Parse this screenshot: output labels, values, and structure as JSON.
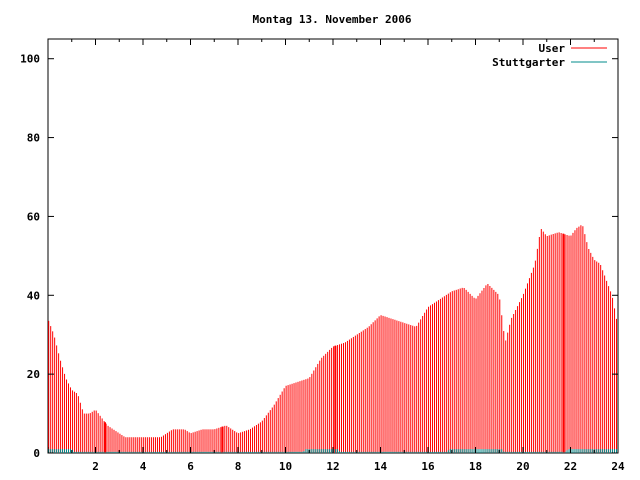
{
  "chart_data": {
    "type": "bar",
    "title": "Montag 13. November 2006",
    "xlabel": "",
    "ylabel": "",
    "xlim": [
      0,
      24
    ],
    "ylim": [
      0,
      105
    ],
    "xticks": [
      2,
      4,
      6,
      8,
      10,
      12,
      14,
      16,
      18,
      20,
      22,
      24
    ],
    "yticks": [
      0,
      20,
      40,
      60,
      80,
      100
    ],
    "grid": false,
    "legend_position": "top-right",
    "bar_spacing_hours": 0.0833,
    "series": [
      {
        "name": "User",
        "color": "#ff0000",
        "profile": [
          [
            0,
            34
          ],
          [
            0.25,
            30
          ],
          [
            0.5,
            24
          ],
          [
            0.75,
            19
          ],
          [
            1.0,
            16
          ],
          [
            1.25,
            15
          ],
          [
            1.5,
            10
          ],
          [
            1.75,
            10
          ],
          [
            2.0,
            11
          ],
          [
            2.25,
            9
          ],
          [
            2.5,
            7
          ],
          [
            2.75,
            6
          ],
          [
            3.0,
            5
          ],
          [
            3.25,
            4
          ],
          [
            4.0,
            4
          ],
          [
            4.75,
            4
          ],
          [
            5.0,
            5
          ],
          [
            5.25,
            6
          ],
          [
            5.75,
            6
          ],
          [
            6.0,
            5
          ],
          [
            6.5,
            6
          ],
          [
            7.0,
            6
          ],
          [
            7.5,
            7
          ],
          [
            7.75,
            6
          ],
          [
            8.0,
            5
          ],
          [
            8.5,
            6
          ],
          [
            9.0,
            8
          ],
          [
            9.5,
            12
          ],
          [
            10.0,
            17
          ],
          [
            10.5,
            18
          ],
          [
            11.0,
            19
          ],
          [
            11.5,
            24
          ],
          [
            12.0,
            27
          ],
          [
            12.5,
            28
          ],
          [
            13.0,
            30
          ],
          [
            13.5,
            32
          ],
          [
            14.0,
            35
          ],
          [
            14.5,
            34
          ],
          [
            15.0,
            33
          ],
          [
            15.5,
            32
          ],
          [
            16.0,
            37
          ],
          [
            16.5,
            39
          ],
          [
            17.0,
            41
          ],
          [
            17.5,
            42
          ],
          [
            18.0,
            39
          ],
          [
            18.5,
            43
          ],
          [
            19.0,
            40
          ],
          [
            19.25,
            28
          ],
          [
            19.5,
            34
          ],
          [
            20.0,
            40
          ],
          [
            20.5,
            48
          ],
          [
            20.75,
            57
          ],
          [
            21.0,
            55
          ],
          [
            21.5,
            56
          ],
          [
            22.0,
            55
          ],
          [
            22.25,
            57
          ],
          [
            22.5,
            58
          ],
          [
            22.75,
            52
          ],
          [
            23.0,
            49
          ],
          [
            23.25,
            48
          ],
          [
            23.5,
            44
          ],
          [
            23.75,
            40
          ],
          [
            24.0,
            32
          ]
        ]
      },
      {
        "name": "Stuttgarter",
        "color": "#008b8b",
        "profile": [
          [
            0,
            1
          ],
          [
            1.0,
            1
          ],
          [
            1.1,
            0.3
          ],
          [
            10.75,
            0.3
          ],
          [
            10.85,
            1
          ],
          [
            12.2,
            1
          ],
          [
            12.3,
            0.3
          ],
          [
            16.8,
            0.3
          ],
          [
            16.9,
            1
          ],
          [
            19.1,
            1
          ],
          [
            19.2,
            0.3
          ],
          [
            21.8,
            0.3
          ],
          [
            21.9,
            1
          ],
          [
            24.0,
            1
          ]
        ]
      }
    ],
    "highlight_bars_hours": [
      2.4,
      7.35,
      12.1,
      21.7
    ]
  }
}
